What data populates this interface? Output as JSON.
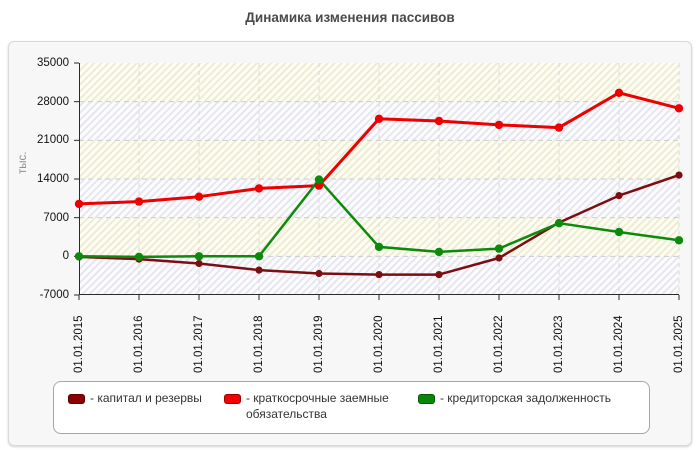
{
  "title": "Динамика изменения пассивов",
  "y_axis_title": "тыс.",
  "legend_prefix": "- ",
  "colors": {
    "panel_bg": "#f7f7f7",
    "axis": "#2a2a2a",
    "grid_h": "#cccccc",
    "grid_v": "#d9d9d9",
    "band_yellow_bg": "#fdfdf3",
    "band_yellow_stripe": "#ecead0",
    "band_gray_bg": "#fcfcfe",
    "band_gray_stripe": "#e4e4ee"
  },
  "chart_data": {
    "type": "line",
    "title": "Динамика изменения пассивов",
    "xlabel": "",
    "ylabel": "тыс.",
    "x": [
      "01.01.2015",
      "01.01.2016",
      "01.01.2017",
      "01.01.2018",
      "01.01.2019",
      "01.01.2020",
      "01.01.2021",
      "01.01.2022",
      "01.01.2023",
      "01.01.2024",
      "01.01.2025"
    ],
    "y_ticks": [
      35000,
      28000,
      21000,
      14000,
      7000,
      0,
      -7000
    ],
    "ylim": [
      -7000,
      35000
    ],
    "grid": true,
    "legend_position": "bottom",
    "series": [
      {
        "name": "капитал и резервы",
        "color": "#7a0e11",
        "swatch_color": "#8b0000",
        "values": [
          -100,
          -500,
          -1300,
          -2500,
          -3100,
          -3300,
          -3300,
          -300,
          6100,
          11000,
          14700
        ]
      },
      {
        "name": "краткосрочные заемные обязательства",
        "color": "#ee0000",
        "swatch_color": "#f40000",
        "values": [
          9500,
          9900,
          10800,
          12300,
          12800,
          24900,
          24500,
          23800,
          23300,
          29600,
          26800
        ]
      },
      {
        "name": "кредиторская задолженность",
        "color": "#0b8a0b",
        "swatch_color": "#088708",
        "values": [
          0,
          -100,
          0,
          0,
          13900,
          1700,
          800,
          1400,
          6000,
          4400,
          2900
        ]
      }
    ]
  }
}
